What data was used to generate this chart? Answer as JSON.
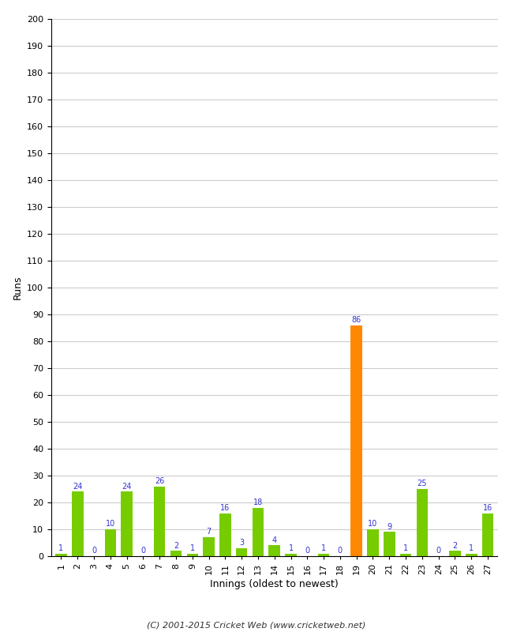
{
  "xlabel": "Innings (oldest to newest)",
  "ylabel": "Runs",
  "ylim": [
    0,
    200
  ],
  "yticks": [
    0,
    10,
    20,
    30,
    40,
    50,
    60,
    70,
    80,
    90,
    100,
    110,
    120,
    130,
    140,
    150,
    160,
    170,
    180,
    190,
    200
  ],
  "categories": [
    1,
    2,
    3,
    4,
    5,
    6,
    7,
    8,
    9,
    10,
    11,
    12,
    13,
    14,
    15,
    16,
    17,
    18,
    19,
    20,
    21,
    22,
    23,
    24,
    25,
    26,
    27
  ],
  "values": [
    1,
    24,
    0,
    10,
    24,
    0,
    26,
    2,
    1,
    7,
    16,
    3,
    18,
    4,
    1,
    0,
    1,
    0,
    86,
    10,
    9,
    1,
    25,
    0,
    2,
    1,
    16
  ],
  "highlight_index": 18,
  "bar_color": "#77cc00",
  "highlight_color": "#ff8800",
  "label_color": "#3333cc",
  "background_color": "#ffffff",
  "grid_color": "#cccccc",
  "footer": "(C) 2001-2015 Cricket Web (www.cricketweb.net)"
}
